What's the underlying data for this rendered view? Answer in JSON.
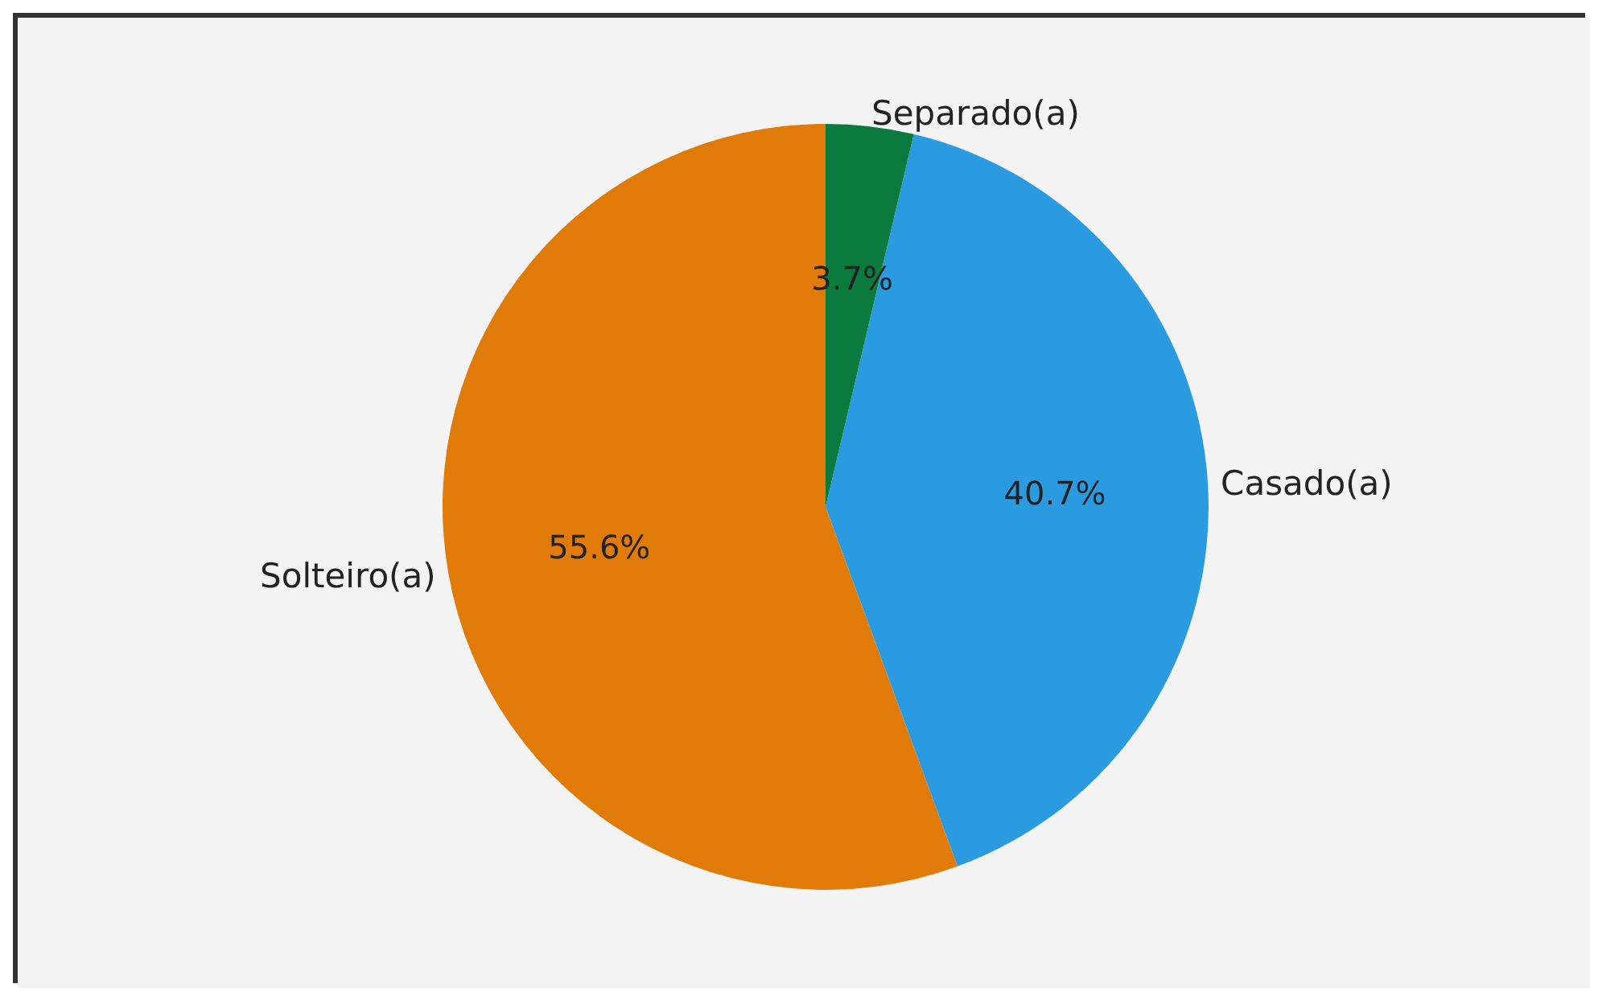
{
  "chart_data": {
    "type": "pie",
    "categories": [
      "Solteiro(a)",
      "Casado(a)",
      "Separado(a)"
    ],
    "values": [
      55.6,
      40.7,
      3.7
    ],
    "colors": [
      "#e07b0a",
      "#2a9be0",
      "#0b7a3e"
    ],
    "value_labels": [
      "55.6%",
      "40.7%",
      "3.7%"
    ]
  }
}
